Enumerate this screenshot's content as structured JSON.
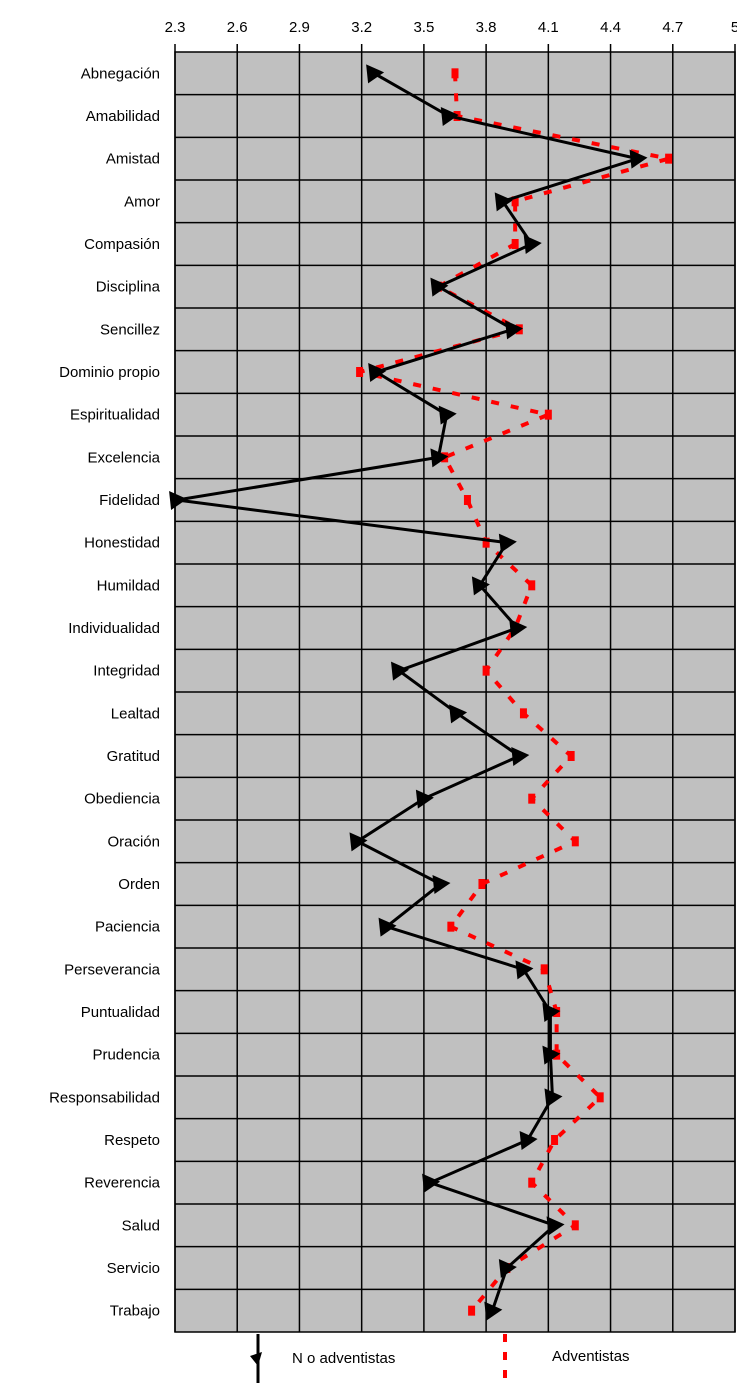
{
  "chart_data": {
    "type": "line",
    "orientation": "horizontal-values",
    "xlim": [
      2.3,
      5
    ],
    "x_ticks": [
      "2.3",
      "2.6",
      "2.9",
      "3.2",
      "3.5",
      "3.8",
      "4.1",
      "4.4",
      "4.7",
      "5"
    ],
    "categories": [
      "Abnegación",
      "Amabilidad",
      "Amistad",
      "Amor",
      "Compasión",
      "Disciplina",
      "Sencillez",
      "Dominio propio",
      "Espiritualidad",
      "Excelencia",
      "Fidelidad",
      "Honestidad",
      "Humildad",
      "Individualidad",
      "Integridad",
      "Lealtad",
      "Gratitud",
      "Obediencia",
      "Oración",
      "Orden",
      "Paciencia",
      "Perseverancia",
      "Puntualidad",
      "Prudencia",
      "Responsabilidad",
      "Respeto",
      "Reverencia",
      "Salud",
      "Servicio",
      "Trabajo"
    ],
    "grid": true,
    "background": "#c0c0c0",
    "legend_position": "bottom",
    "series": [
      {
        "name": "N o adventistas",
        "color": "#000000",
        "style": "solid",
        "values": [
          3.26,
          3.62,
          4.53,
          3.88,
          4.02,
          3.57,
          3.93,
          3.27,
          3.61,
          3.57,
          2.31,
          3.9,
          3.77,
          3.95,
          3.38,
          3.66,
          3.96,
          3.5,
          3.18,
          3.58,
          3.32,
          3.98,
          4.11,
          4.11,
          4.12,
          4.0,
          3.53,
          4.13,
          3.9,
          3.83
        ]
      },
      {
        "name": "Adventistas",
        "color": "#ff0000",
        "style": "dashed",
        "values": [
          3.65,
          3.66,
          4.68,
          3.94,
          3.94,
          3.57,
          3.96,
          3.19,
          4.1,
          3.6,
          3.71,
          3.8,
          4.02,
          3.94,
          3.8,
          3.98,
          4.21,
          4.02,
          4.23,
          3.78,
          3.63,
          4.08,
          4.14,
          4.14,
          4.35,
          4.13,
          4.02,
          4.23,
          3.9,
          3.73
        ]
      }
    ]
  }
}
